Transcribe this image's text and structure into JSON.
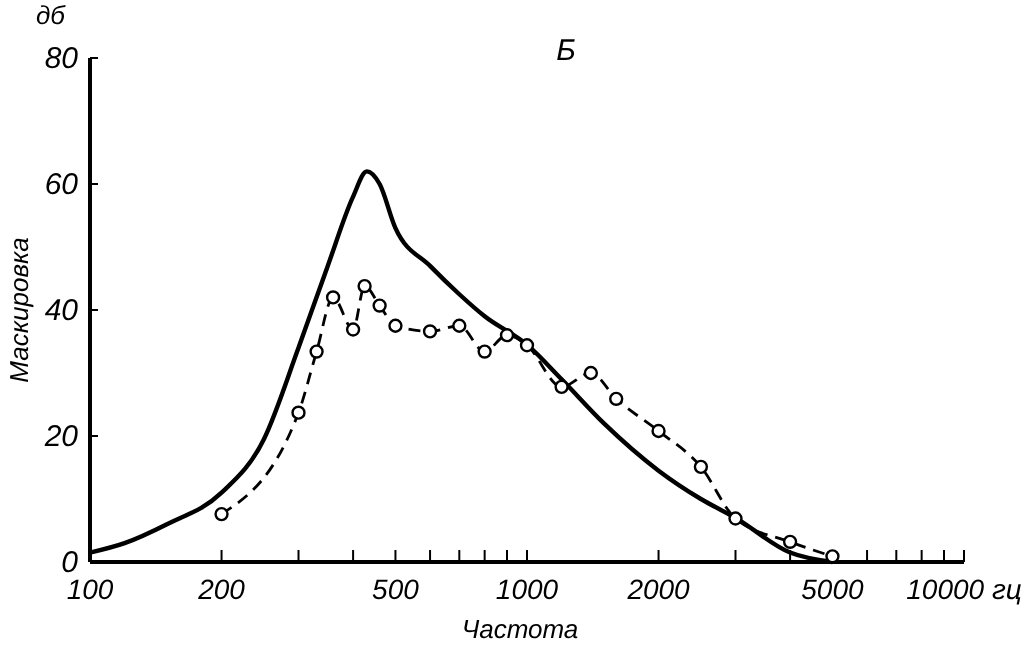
{
  "chart_data": {
    "type": "line",
    "title": "Б",
    "xlabel": "Частота",
    "ylabel": "Маскировка",
    "annotations": [
      "дб"
    ],
    "log": "x",
    "xlim": [
      100,
      10000
    ],
    "ylim": [
      0,
      80
    ],
    "xticks": [
      100,
      200,
      {
        "value": 300,
        "label": null
      },
      {
        "value": 400,
        "label": null
      },
      500,
      {
        "value": 600,
        "label": null
      },
      {
        "value": 700,
        "label": null
      },
      {
        "value": 800,
        "label": null
      },
      {
        "value": 900,
        "label": null
      },
      1000,
      2000,
      {
        "value": 3000,
        "label": null
      },
      {
        "value": 4000,
        "label": null
      },
      5000,
      {
        "value": 6000,
        "label": null
      },
      {
        "value": 7000,
        "label": null
      },
      {
        "value": 8000,
        "label": null
      },
      {
        "value": 9000,
        "label": null
      },
      {
        "value": 10000,
        "label": "10000 гц"
      }
    ],
    "yticks": [
      0,
      20,
      40,
      60,
      80
    ],
    "series": [
      {
        "color": "#000000",
        "line_style": "solid",
        "marker": "none",
        "x": [
          100,
          120,
          150,
          200,
          250,
          300,
          350,
          400,
          430,
          460,
          500,
          600,
          700,
          800,
          1000,
          1200,
          1500,
          2000,
          2500,
          3000,
          4000,
          5000
        ],
        "values": [
          1.5,
          3,
          6,
          11,
          19.5,
          34,
          47,
          58,
          62,
          60,
          53,
          47,
          42.5,
          39,
          34.5,
          29,
          22,
          14.5,
          10,
          7,
          1.5,
          0
        ]
      },
      {
        "color": "#000000",
        "line_style": "dashed",
        "marker": "circle",
        "x": [
          200,
          300,
          330,
          360,
          400,
          425,
          460,
          500,
          600,
          700,
          800,
          900,
          1000,
          1200,
          1400,
          1600,
          2000,
          2500,
          3000,
          4000,
          5000
        ],
        "values": [
          7.6,
          23.7,
          33.4,
          42,
          36.9,
          43.8,
          40.7,
          37.5,
          36.6,
          37.5,
          33.4,
          36,
          34.4,
          27.8,
          30,
          25.9,
          20.8,
          15.1,
          6.9,
          3.2,
          0.9
        ]
      }
    ]
  }
}
